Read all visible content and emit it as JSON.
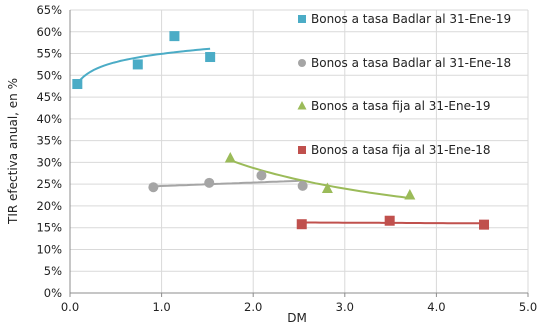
{
  "chart_data": {
    "type": "scatter",
    "xlabel": "DM",
    "ylabel": "TIR efectiva anual, en %",
    "xlim": [
      0,
      5
    ],
    "ylim": [
      0,
      65
    ],
    "x_ticks": [
      "0.0",
      "1.0",
      "2.0",
      "3.0",
      "4.0",
      "5.0"
    ],
    "y_ticks": [
      "0%",
      "5%",
      "10%",
      "15%",
      "20%",
      "25%",
      "30%",
      "35%",
      "40%",
      "45%",
      "50%",
      "55%",
      "60%",
      "65%"
    ],
    "grid": true,
    "legend_position": "right",
    "series": [
      {
        "name": "Bonos a tasa Badlar al 31-Ene-19",
        "marker": "square",
        "color": "#4BACC6",
        "points": [
          [
            0.08,
            48.0
          ],
          [
            0.74,
            52.5
          ],
          [
            1.14,
            59.0
          ],
          [
            1.53,
            54.2
          ]
        ],
        "trend": {
          "kind": "log",
          "x_range": [
            0.08,
            1.53
          ],
          "y_range": [
            48.0,
            56.1
          ]
        }
      },
      {
        "name": "Bonos a tasa Badlar al 31-Ene-18",
        "marker": "circle",
        "color": "#A5A5A5",
        "points": [
          [
            0.91,
            24.3
          ],
          [
            1.52,
            25.3
          ],
          [
            2.09,
            27.0
          ],
          [
            2.54,
            24.6
          ]
        ],
        "trend": {
          "kind": "linear",
          "x_range": [
            0.91,
            2.54
          ],
          "y_range": [
            24.5,
            25.8
          ]
        }
      },
      {
        "name": "Bonos a tasa fija al 31-Ene-19",
        "marker": "triangle",
        "color": "#9BBB59",
        "points": [
          [
            1.75,
            31.0
          ],
          [
            2.81,
            24.0
          ],
          [
            3.71,
            22.5
          ]
        ],
        "trend": {
          "kind": "power",
          "x_range": [
            1.75,
            3.71
          ],
          "y_range": [
            30.5,
            21.8
          ]
        }
      },
      {
        "name": "Bonos a tasa fija al 31-Ene-18",
        "marker": "square",
        "color": "#C0504D",
        "points": [
          [
            2.53,
            15.8
          ],
          [
            3.49,
            16.6
          ],
          [
            4.52,
            15.7
          ]
        ],
        "trend": {
          "kind": "linear",
          "x_range": [
            2.53,
            4.52
          ],
          "y_range": [
            16.2,
            16.0
          ]
        }
      }
    ]
  }
}
